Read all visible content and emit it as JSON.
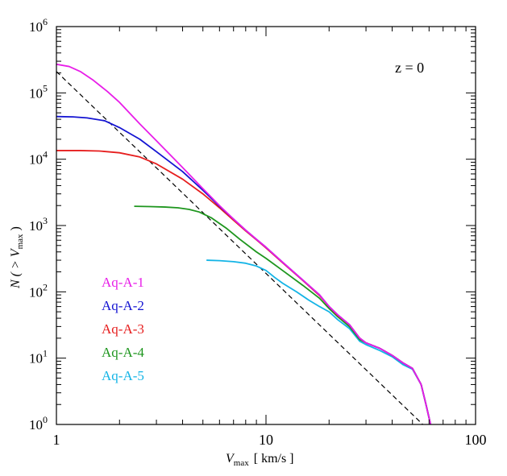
{
  "chart_data": {
    "type": "line",
    "xscale": "log",
    "yscale": "log",
    "xlim": [
      1,
      100
    ],
    "ylim": [
      1,
      1000000
    ],
    "xticks": [
      {
        "value": 1,
        "label": "1"
      },
      {
        "value": 10,
        "label": "10"
      },
      {
        "value": 100,
        "label": "100"
      }
    ],
    "yticks": [
      {
        "value": 1,
        "base": "10",
        "exp": "0"
      },
      {
        "value": 10,
        "base": "10",
        "exp": "1"
      },
      {
        "value": 100,
        "base": "10",
        "exp": "2"
      },
      {
        "value": 1000,
        "base": "10",
        "exp": "3"
      },
      {
        "value": 10000,
        "base": "10",
        "exp": "4"
      },
      {
        "value": 100000,
        "base": "10",
        "exp": "5"
      },
      {
        "value": 1000000,
        "base": "10",
        "exp": "6"
      }
    ],
    "xlabel": {
      "main": "V",
      "sub": "max",
      "units": "[ km/s ]"
    },
    "ylabel": {
      "pre": "N ( > ",
      "main": "V",
      "sub": "max",
      "post": " )"
    },
    "annotation": "z = 0",
    "legend_position": "left",
    "series": [
      {
        "name": "Aq-A-1",
        "color": "#e81ee8",
        "x": [
          1.0,
          1.15,
          1.3,
          1.5,
          1.75,
          2.0,
          2.5,
          3.0,
          4.0,
          5.0,
          6.0,
          7.0,
          8.0,
          9.0,
          10.0,
          12.0,
          15.0,
          18.0,
          20.0,
          22.0,
          25.0,
          28.0,
          30.0,
          35.0,
          40.0,
          45.0,
          50.0,
          55.0,
          58.0,
          61.0
        ],
        "y": [
          270000,
          250000,
          210000,
          155000,
          105000,
          72000,
          34000,
          19000,
          7500,
          3600,
          2000,
          1250,
          850,
          620,
          470,
          280,
          150,
          90,
          60,
          45,
          32,
          20,
          17,
          14,
          11,
          8.5,
          7,
          4,
          2,
          1
        ]
      },
      {
        "name": "Aq-A-2",
        "color": "#1414d2",
        "x": [
          1.0,
          1.2,
          1.4,
          1.7,
          2.0,
          2.5,
          3.0,
          4.0,
          5.0,
          6.0,
          7.0,
          8.0,
          9.0,
          10.0,
          12.0,
          15.0,
          18.0,
          20.0,
          22.0,
          25.0,
          28.0,
          30.0,
          35.0,
          40.0,
          45.0,
          50.0,
          55.0,
          58.0,
          61.0
        ],
        "y": [
          44000,
          43500,
          42000,
          38000,
          30000,
          20000,
          13000,
          6500,
          3400,
          1950,
          1250,
          850,
          620,
          470,
          280,
          150,
          90,
          60,
          45,
          32,
          20,
          17,
          14,
          11,
          8.5,
          7,
          4,
          2,
          1
        ]
      },
      {
        "name": "Aq-A-3",
        "color": "#e61e1e",
        "x": [
          1.0,
          1.3,
          1.6,
          2.0,
          2.5,
          3.0,
          4.0,
          5.0,
          6.0,
          7.0,
          8.0,
          9.0,
          10.0,
          12.0,
          15.0,
          18.0,
          20.0,
          22.0,
          25.0,
          28.0,
          30.0,
          35.0,
          40.0,
          45.0,
          50.0,
          55.0,
          58.0,
          61.0
        ],
        "y": [
          13500,
          13500,
          13300,
          12500,
          10800,
          8500,
          5000,
          3000,
          1850,
          1200,
          830,
          610,
          460,
          275,
          148,
          88,
          60,
          44,
          32,
          20,
          17,
          14,
          11,
          8.5,
          7,
          4,
          2,
          1
        ]
      },
      {
        "name": "Aq-A-4",
        "color": "#1e961e",
        "x": [
          2.35,
          2.8,
          3.3,
          3.8,
          4.3,
          4.8,
          5.5,
          6.5,
          7.5,
          9.0,
          10.0,
          12.0,
          15.0,
          18.0,
          20.0,
          22.0,
          25.0,
          28.0,
          30.0,
          35.0,
          40.0,
          45.0,
          50.0,
          55.0,
          58.0,
          61.0
        ],
        "y": [
          1950,
          1930,
          1900,
          1850,
          1750,
          1600,
          1300,
          900,
          620,
          400,
          320,
          210,
          125,
          80,
          56,
          42,
          30,
          19,
          17,
          14,
          11,
          8.5,
          7,
          4,
          2,
          1
        ]
      },
      {
        "name": "Aq-A-5",
        "color": "#14b4e6",
        "x": [
          5.2,
          6.0,
          7.0,
          8.0,
          9.0,
          10.0,
          11.0,
          12.0,
          14.0,
          16.0,
          18.0,
          20.0,
          22.0,
          25.0,
          28.0,
          30.0,
          35.0,
          40.0,
          45.0,
          50.0,
          55.0,
          58.0,
          61.0
        ],
        "y": [
          300,
          295,
          285,
          270,
          245,
          210,
          165,
          135,
          100,
          75,
          60,
          50,
          38,
          28,
          18,
          16,
          13,
          10.5,
          8,
          6.8,
          4,
          2,
          1
        ]
      }
    ],
    "reference_line": {
      "style": "dashed",
      "color": "#000000",
      "x": [
        1.0,
        56.0
      ],
      "y": [
        210000,
        1
      ]
    }
  }
}
